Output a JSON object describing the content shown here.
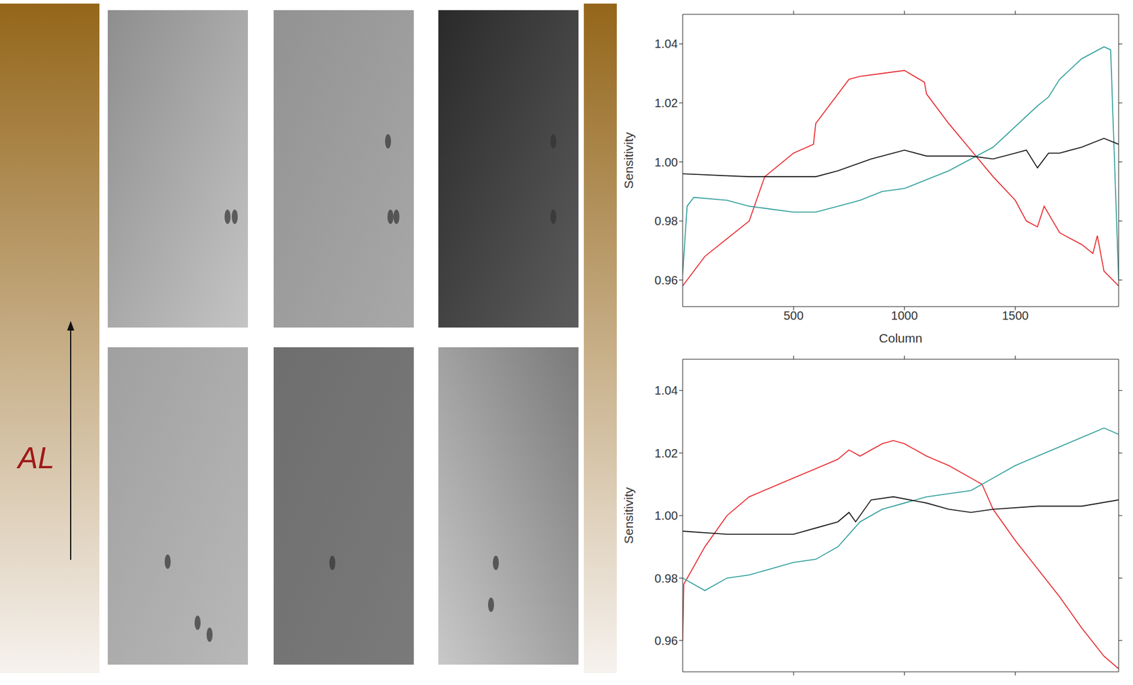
{
  "images": {
    "axis_label": "AL"
  },
  "chart_data": [
    {
      "type": "line",
      "x_label": "Column",
      "y_label": "Sensitivity",
      "xlim": [
        0,
        1966
      ],
      "xticks": [
        500,
        1000,
        1500
      ],
      "ylim": [
        0.951,
        1.05
      ],
      "yticks": [
        0.96,
        0.98,
        {
          "value": 1,
          "label": "1.00"
        },
        1.02,
        1.04
      ],
      "series": [
        {
          "color": "#e8262b",
          "x": [
            0,
            100,
            200,
            300,
            370,
            500,
            590,
            600,
            750,
            800,
            900,
            1000,
            1090,
            1100,
            1200,
            1300,
            1400,
            1500,
            1550,
            1600,
            1630,
            1700,
            1800,
            1850,
            1870,
            1900,
            1966
          ],
          "values": [
            0.958,
            0.968,
            0.974,
            0.98,
            0.995,
            1.003,
            1.006,
            1.013,
            1.028,
            1.029,
            1.03,
            1.031,
            1.027,
            1.023,
            1.013,
            1.004,
            0.995,
            0.987,
            0.98,
            0.978,
            0.985,
            0.976,
            0.972,
            0.969,
            0.975,
            0.963,
            0.958
          ]
        },
        {
          "color": "#2a9d9a",
          "x": [
            0,
            20,
            50,
            200,
            300,
            400,
            500,
            600,
            700,
            800,
            900,
            1000,
            1100,
            1200,
            1300,
            1400,
            1500,
            1600,
            1650,
            1700,
            1800,
            1900,
            1930,
            1966
          ],
          "values": [
            0.962,
            0.985,
            0.988,
            0.987,
            0.985,
            0.984,
            0.983,
            0.983,
            0.985,
            0.987,
            0.99,
            0.991,
            0.994,
            0.997,
            1.001,
            1.005,
            1.012,
            1.019,
            1.022,
            1.028,
            1.035,
            1.039,
            1.038,
            0.96
          ]
        },
        {
          "color": "#111111",
          "x": [
            0,
            300,
            600,
            700,
            850,
            1000,
            1100,
            1300,
            1400,
            1500,
            1550,
            1600,
            1650,
            1700,
            1800,
            1900,
            1966
          ],
          "values": [
            0.996,
            0.995,
            0.995,
            0.997,
            1.001,
            1.004,
            1.002,
            1.002,
            1.001,
            1.003,
            1.004,
            0.998,
            1.003,
            1.003,
            1.005,
            1.008,
            1.006
          ]
        }
      ]
    },
    {
      "type": "line",
      "y_label": "Sensitivity",
      "tick_labels": "y",
      "xlim": [
        0,
        1966
      ],
      "xticks": [
        500,
        1000,
        1500
      ],
      "ylim": [
        0.95,
        1.05
      ],
      "yticks": [
        0.96,
        0.98,
        {
          "value": 1,
          "label": "1.00"
        },
        1.02,
        1.04
      ],
      "series": [
        {
          "color": "#e8262b",
          "x": [
            0,
            5,
            100,
            200,
            300,
            400,
            500,
            600,
            700,
            750,
            800,
            900,
            950,
            1000,
            1100,
            1200,
            1300,
            1350,
            1400,
            1500,
            1600,
            1700,
            1800,
            1900,
            1966
          ],
          "values": [
            0.96,
            0.978,
            0.99,
            1.0,
            1.006,
            1.009,
            1.012,
            1.015,
            1.018,
            1.021,
            1.019,
            1.023,
            1.024,
            1.023,
            1.019,
            1.016,
            1.012,
            1.01,
            1.002,
            0.992,
            0.983,
            0.974,
            0.964,
            0.955,
            0.951
          ]
        },
        {
          "color": "#2a9d9a",
          "x": [
            0,
            100,
            200,
            300,
            400,
            500,
            600,
            700,
            800,
            900,
            1000,
            1100,
            1200,
            1300,
            1400,
            1500,
            1600,
            1700,
            1800,
            1900,
            1966
          ],
          "values": [
            0.98,
            0.976,
            0.98,
            0.981,
            0.983,
            0.985,
            0.986,
            0.99,
            0.998,
            1.002,
            1.004,
            1.006,
            1.007,
            1.008,
            1.012,
            1.016,
            1.019,
            1.022,
            1.025,
            1.028,
            1.026
          ]
        },
        {
          "color": "#111111",
          "x": [
            0,
            200,
            500,
            600,
            700,
            750,
            780,
            850,
            950,
            1100,
            1200,
            1300,
            1400,
            1600,
            1800,
            1966
          ],
          "values": [
            0.995,
            0.994,
            0.994,
            0.996,
            0.998,
            1.001,
            0.998,
            1.005,
            1.006,
            1.004,
            1.002,
            1.001,
            1.002,
            1.003,
            1.003,
            1.005
          ]
        }
      ]
    }
  ]
}
